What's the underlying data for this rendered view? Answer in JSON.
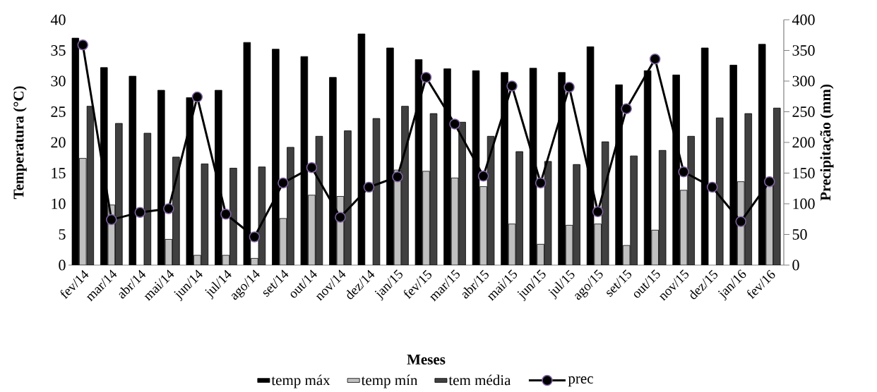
{
  "chart_data": {
    "type": "bar",
    "categories": [
      "fev/14",
      "mar/14",
      "abr/14",
      "mai/14",
      "jun/14",
      "jul/14",
      "ago/14",
      "set/14",
      "out/14",
      "nov/14",
      "dez/14",
      "jan/15",
      "fev/15",
      "mar/15",
      "abr/15",
      "mai/15",
      "jun/15",
      "jul/15",
      "ago/15",
      "set/15",
      "out/15",
      "nov/15",
      "dez/15",
      "jan/16",
      "fev/16"
    ],
    "series": [
      {
        "name": "temp máx",
        "color": "#000000",
        "values": [
          37.0,
          32.2,
          30.8,
          28.5,
          27.3,
          28.5,
          36.3,
          35.2,
          34.0,
          30.6,
          37.7,
          35.4,
          33.5,
          32.0,
          31.7,
          31.4,
          32.1,
          31.4,
          35.6,
          29.4,
          31.7,
          31.0,
          35.4,
          32.6,
          36.0
        ]
      },
      {
        "name": "temp mín",
        "color": "#c0c0c0",
        "values": [
          17.4,
          9.8,
          null,
          4.2,
          1.6,
          1.6,
          1.1,
          7.6,
          11.4,
          11.2,
          null,
          15.5,
          15.3,
          14.2,
          12.8,
          6.7,
          3.4,
          6.5,
          6.7,
          3.2,
          5.7,
          12.2,
          null,
          13.6,
          13.0
        ]
      },
      {
        "name": "tem média",
        "color": "#404040",
        "values": [
          25.9,
          23.1,
          21.5,
          17.6,
          16.5,
          15.8,
          16.0,
          19.2,
          21.0,
          21.9,
          23.9,
          25.9,
          24.7,
          23.3,
          21.0,
          18.5,
          16.9,
          16.4,
          20.1,
          17.8,
          18.7,
          21.0,
          24.0,
          24.7,
          25.6
        ]
      },
      {
        "name": "prec",
        "type": "line",
        "axis": "y2",
        "marker": "circle",
        "color": "#000000",
        "values": [
          359,
          74,
          86,
          92,
          274,
          83,
          46,
          134,
          159,
          78,
          127,
          144,
          306,
          230,
          145,
          292,
          134,
          290,
          87,
          255,
          336,
          152,
          127,
          71,
          136
        ]
      }
    ],
    "xlabel": "Meses",
    "ylabel": "Temperatura  (°C)",
    "y2label": "Precipitação  (mm)",
    "ylim": [
      0,
      40
    ],
    "yticks": [
      0,
      5,
      10,
      15,
      20,
      25,
      30,
      35,
      40
    ],
    "y2lim": [
      0,
      400
    ],
    "y2ticks": [
      0,
      50,
      100,
      150,
      200,
      250,
      300,
      350,
      400
    ],
    "legend": "bottom"
  }
}
